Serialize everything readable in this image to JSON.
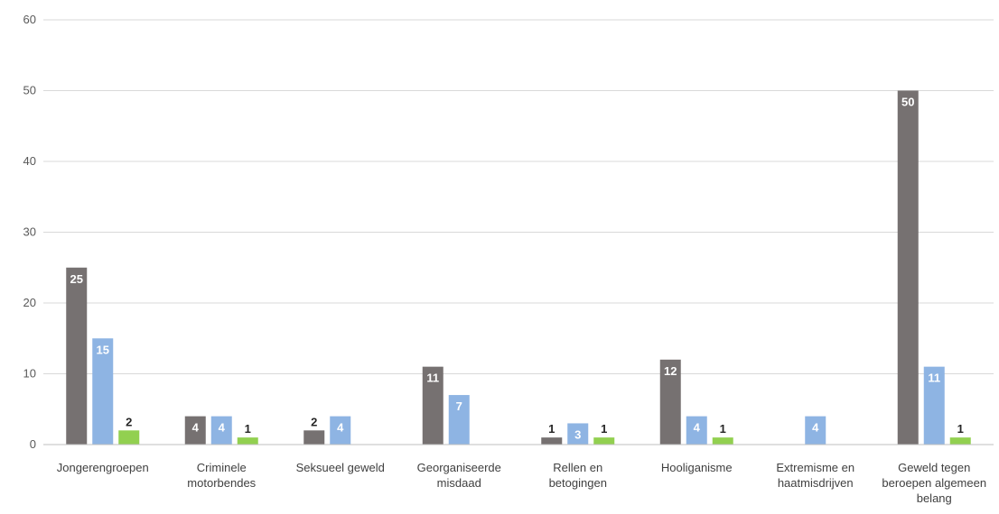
{
  "chart_data": {
    "type": "bar",
    "categories": [
      "Jongerengroepen",
      "Criminele motorbendes",
      "Seksueel geweld",
      "Georganiseerde misdaad",
      "Rellen en betogingen",
      "Hooliganisme",
      "Extremisme en haatmisdrijven",
      "Geweld tegen beroepen algemeen belang"
    ],
    "series": [
      {
        "color": "#767171",
        "values": [
          25,
          4,
          2,
          11,
          1,
          12,
          null,
          50
        ]
      },
      {
        "color": "#8eb4e3",
        "values": [
          15,
          4,
          4,
          7,
          3,
          4,
          4,
          11
        ]
      },
      {
        "color": "#92d050",
        "values": [
          2,
          1,
          null,
          null,
          1,
          1,
          null,
          1
        ]
      }
    ],
    "ylim": [
      0,
      60
    ],
    "yticks": [
      0,
      10,
      20,
      30,
      40,
      50,
      60
    ],
    "grid": true,
    "legend": "none",
    "title": "",
    "xlabel": "",
    "ylabel": ""
  }
}
